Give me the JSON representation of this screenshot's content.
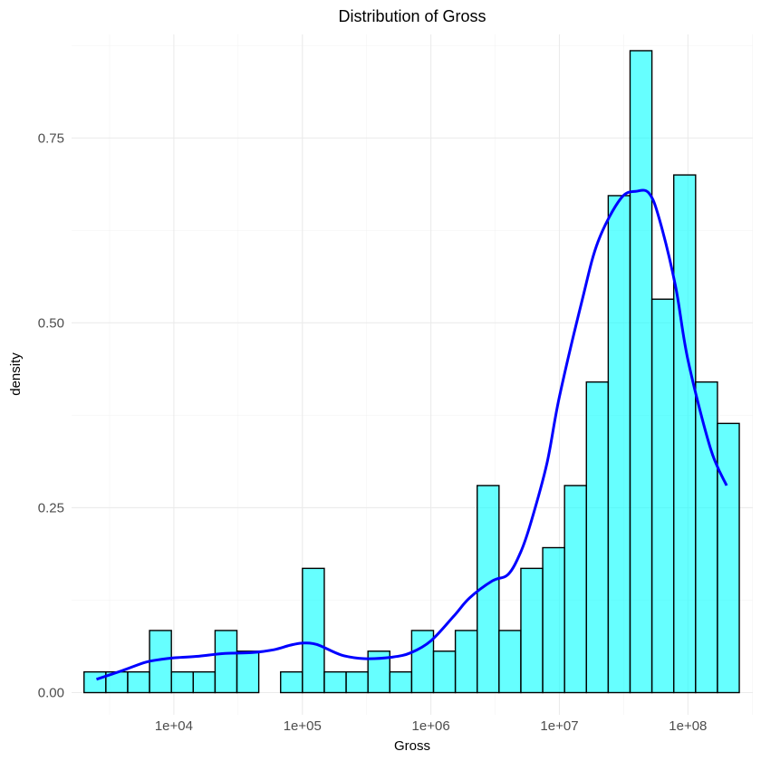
{
  "chart_data": {
    "type": "bar",
    "title": "Distribution of Gross",
    "xlabel": "Gross",
    "ylabel": "density",
    "x_scale": "log10",
    "x_ticks": [
      {
        "value": 10000,
        "label": "1e+04"
      },
      {
        "value": 100000,
        "label": "1e+05"
      },
      {
        "value": 1000000,
        "label": "1e+06"
      },
      {
        "value": 10000000,
        "label": "1e+07"
      },
      {
        "value": 100000000,
        "label": "1e+08"
      }
    ],
    "y_ticks": [
      {
        "value": 0,
        "label": "0.00"
      },
      {
        "value": 0.25,
        "label": "0.25"
      },
      {
        "value": 0.5,
        "label": "0.50"
      },
      {
        "value": 0.75,
        "label": "0.75"
      }
    ],
    "xlim": [
      1600,
      320000000
    ],
    "ylim": [
      -0.03,
      0.89
    ],
    "grid": true,
    "colors": {
      "bar_fill": "#00ffff",
      "bar_fill_opacity": 0.6,
      "bar_outline": "#000000",
      "density_line": "#0000ff"
    },
    "histogram": {
      "bin_range": [
        2000,
        251000000
      ],
      "densities": [
        0.028,
        0.028,
        0.028,
        0.084,
        0.028,
        0.028,
        0.084,
        0.056,
        0.0,
        0.028,
        0.168,
        0.028,
        0.028,
        0.056,
        0.028,
        0.084,
        0.056,
        0.084,
        0.28,
        0.084,
        0.168,
        0.196,
        0.28,
        0.42,
        0.672,
        0.868,
        0.532,
        0.7,
        0.42,
        0.364
      ]
    },
    "density_curve": {
      "x": [
        2500,
        4000,
        6000,
        8000,
        10000,
        15000,
        25000,
        40000,
        60000,
        80000,
        100000,
        130000,
        200000,
        300000,
        500000,
        700000,
        1000000,
        1500000,
        2000000,
        3000000,
        4000000,
        5000000,
        6000000,
        8000000,
        10000000,
        15000000,
        20000000,
        30000000,
        40000000,
        50000000,
        60000000,
        80000000,
        100000000,
        150000000,
        200000000
      ],
      "y": [
        0.018,
        0.03,
        0.041,
        0.045,
        0.047,
        0.049,
        0.053,
        0.054,
        0.058,
        0.064,
        0.067,
        0.065,
        0.051,
        0.046,
        0.048,
        0.054,
        0.07,
        0.103,
        0.128,
        0.151,
        0.16,
        0.19,
        0.23,
        0.31,
        0.4,
        0.53,
        0.61,
        0.668,
        0.678,
        0.675,
        0.64,
        0.55,
        0.45,
        0.33,
        0.28
      ]
    }
  }
}
